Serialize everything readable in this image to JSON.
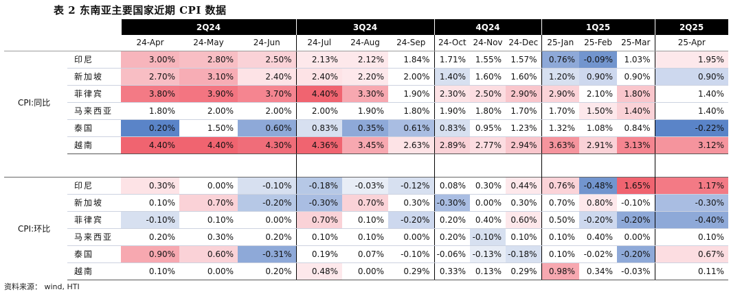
{
  "title": "表 2 东南亚主要国家近期 CPI 数据",
  "source": "资料来源：  wind, HTI",
  "quarters": [
    "2Q24",
    "3Q24",
    "4Q24",
    "1Q25",
    "2Q25"
  ],
  "months": [
    "24-Apr",
    "24-May",
    "24-Jun",
    "24-Jul",
    "24-Aug",
    "24-Sep",
    "24-Oct",
    "24-Nov",
    "24-Dec",
    "25-Jan",
    "25-Feb",
    "25-Mar",
    "25-Apr"
  ],
  "sections": [
    {
      "label": "CPI:同比",
      "rows": [
        {
          "country": "印尼",
          "values": [
            "3.00%",
            "2.80%",
            "2.50%",
            "2.13%",
            "2.12%",
            "1.84%",
            "1.71%",
            "1.55%",
            "1.57%",
            "0.76%",
            "-0.09%",
            "1.03%",
            "1.95%"
          ]
        },
        {
          "country": "新加坡",
          "values": [
            "2.70%",
            "3.10%",
            "2.40%",
            "2.40%",
            "2.20%",
            "2.00%",
            "1.40%",
            "1.60%",
            "1.60%",
            "1.20%",
            "0.90%",
            "0.90%",
            "0.90%"
          ]
        },
        {
          "country": "菲律宾",
          "values": [
            "3.80%",
            "3.90%",
            "3.70%",
            "4.40%",
            "3.30%",
            "1.90%",
            "2.30%",
            "2.50%",
            "2.90%",
            "2.90%",
            "2.10%",
            "1.80%",
            "1.40%"
          ]
        },
        {
          "country": "马来西亚",
          "values": [
            "1.80%",
            "2.00%",
            "2.00%",
            "2.00%",
            "1.90%",
            "1.80%",
            "1.90%",
            "1.80%",
            "1.70%",
            "1.70%",
            "1.50%",
            "1.40%",
            "1.40%"
          ]
        },
        {
          "country": "泰国",
          "values": [
            "0.20%",
            "1.50%",
            "0.60%",
            "0.83%",
            "0.35%",
            "0.61%",
            "0.83%",
            "0.95%",
            "1.23%",
            "1.32%",
            "1.08%",
            "0.84%",
            "-0.22%"
          ]
        },
        {
          "country": "越南",
          "values": [
            "4.40%",
            "4.40%",
            "4.30%",
            "4.36%",
            "3.45%",
            "2.63%",
            "2.89%",
            "2.77%",
            "2.94%",
            "3.63%",
            "2.91%",
            "3.13%",
            "3.12%"
          ]
        }
      ],
      "colors": [
        [
          "#f7b5bc",
          "#f8bec4",
          "#fad2d7",
          "#fde8eb",
          "#fde8eb",
          "#ffffff",
          "#ffffff",
          "#ffffff",
          "#ffffff",
          "#8ea9d8",
          "#7295ce",
          "#ffffff",
          "#fde8eb"
        ],
        [
          "#f8bec4",
          "#f7adb5",
          "#fde3e6",
          "#fde3e6",
          "#fde8eb",
          "#ffffff",
          "#d7e0f0",
          "#ffffff",
          "#ffffff",
          "#d7e0f0",
          "#cdd8ee",
          "#ffffff",
          "#cdd8ee"
        ],
        [
          "#f37a85",
          "#f37581",
          "#f58590",
          "#f06470",
          "#f7a8b0",
          "#ffffff",
          "#fde3e6",
          "#fcdde1",
          "#f9c6cc",
          "#fbd3d8",
          "#ffffff",
          "#f9c6cc",
          "#ffffff"
        ],
        [
          "#ffffff",
          "#ffffff",
          "#ffffff",
          "#ffffff",
          "#ffffff",
          "#ffffff",
          "#ffffff",
          "#ffffff",
          "#ffffff",
          "#ffffff",
          "#fde8eb",
          "#fad2d7",
          "#ffffff"
        ],
        [
          "#5a84c8",
          "#ffffff",
          "#8ea9d8",
          "#d7e0f0",
          "#8ea9d8",
          "#a9bde2",
          "#d7e0f0",
          "#ffffff",
          "#ffffff",
          "#ffffff",
          "#ffffff",
          "#ffffff",
          "#5a84c8"
        ],
        [
          "#f06470",
          "#f06470",
          "#f06d79",
          "#f06470",
          "#f7a8b0",
          "#fde3e6",
          "#fad2d7",
          "#fcdde1",
          "#f9c6cc",
          "#f5949d",
          "#fad2d7",
          "#f58590",
          "#f5949d"
        ]
      ]
    },
    {
      "label": "CPI:环比",
      "rows": [
        {
          "country": "印尼",
          "values": [
            "0.30%",
            "0.00%",
            "-0.10%",
            "-0.18%",
            "-0.03%",
            "-0.12%",
            "0.08%",
            "0.30%",
            "0.44%",
            "0.76%",
            "-0.48%",
            "1.65%",
            "1.17%"
          ]
        },
        {
          "country": "新加坡",
          "values": [
            "0.10%",
            "0.70%",
            "-0.20%",
            "-0.30%",
            "0.70%",
            "0.30%",
            "-0.30%",
            "0.00%",
            "0.30%",
            "0.70%",
            "0.80%",
            "-0.10%",
            "-0.30%"
          ]
        },
        {
          "country": "菲律宾",
          "values": [
            "-0.10%",
            "0.10%",
            "0.00%",
            "0.70%",
            "0.10%",
            "-0.20%",
            "0.20%",
            "0.40%",
            "0.60%",
            "0.50%",
            "-0.20%",
            "-0.20%",
            "-0.40%"
          ]
        },
        {
          "country": "马来西亚",
          "values": [
            "0.20%",
            "0.30%",
            "0.20%",
            "0.10%",
            "0.10%",
            "0.00%",
            "0.20%",
            "-0.10%",
            "0.10%",
            "0.10%",
            "0.40%",
            "0.00%",
            "0.10%"
          ]
        },
        {
          "country": "泰国",
          "values": [
            "0.90%",
            "0.60%",
            "-0.31%",
            "0.19%",
            "0.07%",
            "-0.10%",
            "-0.06%",
            "-0.13%",
            "-0.18%",
            "0.10%",
            "-0.02%",
            "-0.20%",
            "0.67%"
          ]
        },
        {
          "country": "越南",
          "values": [
            "0.10%",
            "0.00%",
            "0.20%",
            "0.48%",
            "0.00%",
            "0.29%",
            "0.33%",
            "0.13%",
            "0.29%",
            "0.98%",
            "0.34%",
            "-0.03%",
            "0.11%"
          ]
        }
      ],
      "colors": [
        [
          "#fde3e6",
          "#ffffff",
          "#d7e0f0",
          "#b6c8e6",
          "#e8edf6",
          "#d7e0f0",
          "#ffffff",
          "#ffffff",
          "#fde8eb",
          "#fbd3d8",
          "#7295ce",
          "#f06470",
          "#f37a85"
        ],
        [
          "#ffffff",
          "#fad2d7",
          "#b6c8e6",
          "#a9bde2",
          "#fad2d7",
          "#ffffff",
          "#a9bde2",
          "#ffffff",
          "#ffffff",
          "#ffffff",
          "#fde8eb",
          "#ffffff",
          "#a9bde2"
        ],
        [
          "#d7e0f0",
          "#ffffff",
          "#ffffff",
          "#fad2d7",
          "#ffffff",
          "#cdd8ee",
          "#ffffff",
          "#ffffff",
          "#fde8eb",
          "#ffffff",
          "#cdd8ee",
          "#8ea9d8",
          "#8ea9d8"
        ],
        [
          "#ffffff",
          "#ffffff",
          "#ffffff",
          "#ffffff",
          "#ffffff",
          "#ffffff",
          "#ffffff",
          "#d7e0f0",
          "#ffffff",
          "#ffffff",
          "#ffffff",
          "#ffffff",
          "#ffffff"
        ],
        [
          "#f7a8b0",
          "#fad2d7",
          "#8ea9d8",
          "#ffffff",
          "#ffffff",
          "#ffffff",
          "#ffffff",
          "#e8edf6",
          "#d7e0f0",
          "#ffffff",
          "#ffffff",
          "#8ea9d8",
          "#fcdde1"
        ],
        [
          "#ffffff",
          "#ffffff",
          "#ffffff",
          "#fde8eb",
          "#ffffff",
          "#ffffff",
          "#ffffff",
          "#ffffff",
          "#ffffff",
          "#f7a8b0",
          "#ffffff",
          "#ffffff",
          "#ffffff"
        ]
      ]
    }
  ]
}
